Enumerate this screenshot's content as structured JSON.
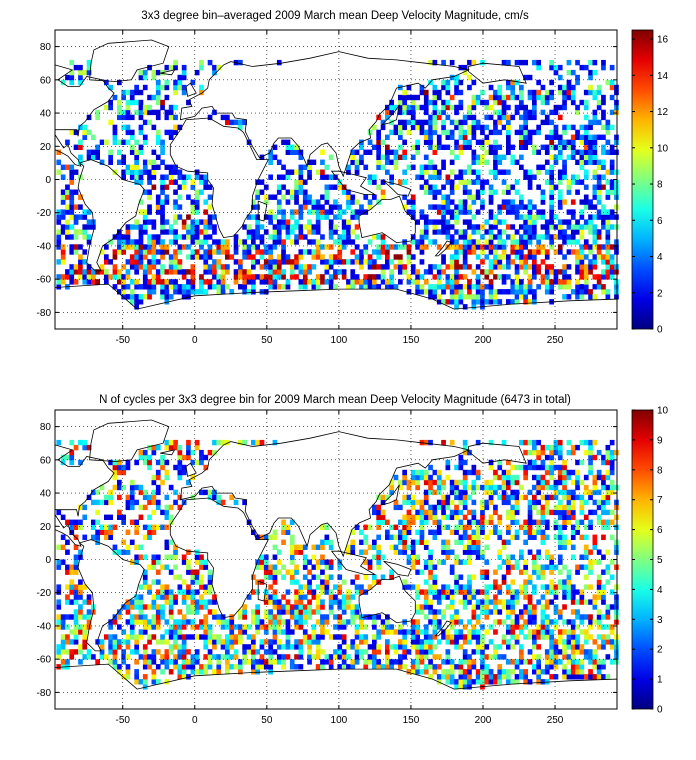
{
  "chart_data": [
    {
      "type": "heatmap",
      "title": "3x3 degree bin–averaged 2009 March mean Deep Velocity Magnitude, cm/s",
      "xticks": [
        "-50",
        "0",
        "50",
        "100",
        "150",
        "200",
        "250"
      ],
      "yticks": [
        "80",
        "60",
        "40",
        "20",
        "0",
        "-20",
        "-40",
        "-60",
        "-80"
      ],
      "xlim": [
        -97,
        293
      ],
      "ylim": [
        -90,
        90
      ],
      "grid": "dotted",
      "colormap": "jet",
      "colorbar": {
        "min": 0,
        "max": 16.5,
        "ticks": [
          "0",
          "2",
          "4",
          "6",
          "8",
          "10",
          "12",
          "14",
          "16"
        ]
      }
    },
    {
      "type": "heatmap",
      "title": "N of cycles per 3x3 degree bin for 2009 March mean Deep Velocity Magnitude (6473 in total)",
      "xticks": [
        "-50",
        "0",
        "50",
        "100",
        "150",
        "200",
        "250"
      ],
      "yticks": [
        "80",
        "60",
        "40",
        "20",
        "0",
        "-20",
        "-40",
        "-60",
        "-80"
      ],
      "xlim": [
        -97,
        293
      ],
      "ylim": [
        -90,
        90
      ],
      "grid": "dotted",
      "colormap": "jet",
      "colorbar": {
        "min": 0,
        "max": 10,
        "ticks": [
          "0",
          "1",
          "2",
          "3",
          "4",
          "5",
          "6",
          "7",
          "8",
          "9",
          "10"
        ]
      }
    }
  ]
}
